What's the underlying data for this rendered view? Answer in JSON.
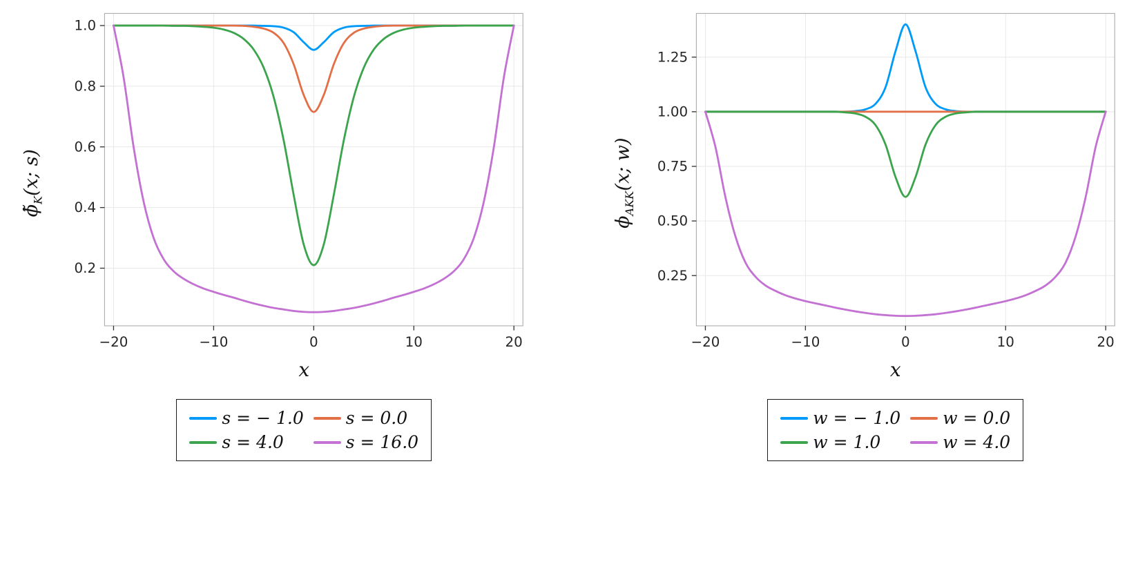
{
  "palette": {
    "blue": "#009AFA",
    "orange": "#E36F47",
    "green": "#3DA44E",
    "purple": "#C371D2",
    "grid": "#e7e7e7",
    "frame": "#aeaeae",
    "tick": "#333333",
    "tick_label": "#262626"
  },
  "chart_data": [
    {
      "type": "line",
      "title": "",
      "xlabel": "x",
      "ylabel": "ϕ̃_K(x; s)",
      "ylabel_parts": {
        "base": "ϕ̃",
        "sub": "K",
        "rest": "(x; s)"
      },
      "xlim": [
        -20.9,
        20.9
      ],
      "ylim": [
        0.01,
        1.04
      ],
      "grid": true,
      "legend_position": "below",
      "xticks": {
        "values": [
          -20,
          -10,
          0,
          10,
          20
        ],
        "labels": [
          "−20",
          "−10",
          "0",
          "10",
          "20"
        ]
      },
      "yticks": {
        "values": [
          0.2,
          0.4,
          0.6,
          0.8,
          1.0
        ],
        "labels": [
          "0.2",
          "0.4",
          "0.6",
          "0.8",
          "1.0"
        ]
      },
      "x": [
        -20,
        -19,
        -18,
        -17,
        -16,
        -15,
        -14,
        -13,
        -12,
        -11,
        -10,
        -9,
        -8,
        -7,
        -6,
        -5,
        -4,
        -3,
        -2,
        -1,
        0,
        1,
        2,
        3,
        4,
        5,
        6,
        7,
        8,
        9,
        10,
        11,
        12,
        13,
        14,
        15,
        16,
        17,
        18,
        19,
        20
      ],
      "series": [
        {
          "name": "s = − 1.0",
          "color": "#009AFA",
          "y": [
            1,
            1,
            1,
            1,
            1,
            1,
            1,
            1,
            1,
            1,
            1,
            1,
            1,
            1,
            1,
            0.999,
            0.998,
            0.993,
            0.978,
            0.945,
            0.92,
            0.945,
            0.978,
            0.993,
            0.998,
            0.999,
            1,
            1,
            1,
            1,
            1,
            1,
            1,
            1,
            1,
            1,
            1,
            1,
            1,
            1,
            1
          ]
        },
        {
          "name": "s = 0.0",
          "color": "#E36F47",
          "y": [
            1,
            1,
            1,
            1,
            1,
            1,
            1,
            1,
            1,
            1,
            1,
            1,
            1,
            0.999,
            0.996,
            0.99,
            0.976,
            0.942,
            0.872,
            0.771,
            0.715,
            0.771,
            0.872,
            0.942,
            0.976,
            0.99,
            0.996,
            0.999,
            1,
            1,
            1,
            1,
            1,
            1,
            1,
            1,
            1,
            1,
            1,
            1,
            1
          ]
        },
        {
          "name": "s = 4.0",
          "color": "#3DA44E",
          "y": [
            1,
            1,
            1,
            1,
            1,
            1,
            0.999,
            0.999,
            0.998,
            0.996,
            0.993,
            0.987,
            0.976,
            0.956,
            0.921,
            0.861,
            0.764,
            0.621,
            0.441,
            0.278,
            0.21,
            0.278,
            0.441,
            0.621,
            0.764,
            0.861,
            0.921,
            0.956,
            0.976,
            0.987,
            0.993,
            0.996,
            0.998,
            0.999,
            0.999,
            1,
            1,
            1,
            1,
            1,
            1
          ]
        },
        {
          "name": "s = 16.0",
          "color": "#C371D2",
          "y": [
            1,
            0.83,
            0.6,
            0.42,
            0.3,
            0.23,
            0.19,
            0.165,
            0.147,
            0.133,
            0.122,
            0.112,
            0.103,
            0.093,
            0.084,
            0.076,
            0.069,
            0.064,
            0.059,
            0.056,
            0.055,
            0.056,
            0.059,
            0.064,
            0.069,
            0.076,
            0.084,
            0.093,
            0.103,
            0.112,
            0.122,
            0.133,
            0.147,
            0.165,
            0.19,
            0.23,
            0.3,
            0.42,
            0.6,
            0.83,
            1
          ]
        }
      ]
    },
    {
      "type": "line",
      "title": "",
      "xlabel": "x",
      "ylabel": "ϕ_AKK(x; w)",
      "ylabel_parts": {
        "base": "ϕ",
        "sub": "AKK",
        "rest": "(x; w)"
      },
      "xlim": [
        -20.9,
        20.9
      ],
      "ylim": [
        0.02,
        1.45
      ],
      "grid": true,
      "legend_position": "below",
      "xticks": {
        "values": [
          -20,
          -10,
          0,
          10,
          20
        ],
        "labels": [
          "−20",
          "−10",
          "0",
          "10",
          "20"
        ]
      },
      "yticks": {
        "values": [
          0.25,
          0.5,
          0.75,
          1.0,
          1.25
        ],
        "labels": [
          "0.25",
          "0.50",
          "0.75",
          "1.00",
          "1.25"
        ]
      },
      "x": [
        -20,
        -19,
        -18,
        -17,
        -16,
        -15,
        -14,
        -13,
        -12,
        -11,
        -10,
        -9,
        -8,
        -7,
        -6,
        -5,
        -4,
        -3,
        -2,
        -1,
        0,
        1,
        2,
        3,
        4,
        5,
        6,
        7,
        8,
        9,
        10,
        11,
        12,
        13,
        14,
        15,
        16,
        17,
        18,
        19,
        20
      ],
      "series": [
        {
          "name": "w = − 1.0",
          "color": "#009AFA",
          "y": [
            1,
            1,
            1,
            1,
            1,
            1,
            1,
            1,
            1,
            1,
            1,
            1,
            1,
            1,
            1,
            1.003,
            1.011,
            1.036,
            1.112,
            1.277,
            1.4,
            1.277,
            1.112,
            1.036,
            1.011,
            1.003,
            1,
            1,
            1,
            1,
            1,
            1,
            1,
            1,
            1,
            1,
            1,
            1,
            1,
            1,
            1
          ]
        },
        {
          "name": "w = 0.0",
          "color": "#E36F47",
          "y": [
            1,
            1,
            1,
            1,
            1,
            1,
            1,
            1,
            1,
            1,
            1,
            1,
            1,
            1,
            1,
            1,
            1,
            1,
            1,
            1,
            1,
            1,
            1,
            1,
            1,
            1,
            1,
            1,
            1,
            1,
            1,
            1,
            1,
            1,
            1,
            1,
            1,
            1,
            1,
            1,
            1
          ]
        },
        {
          "name": "w = 1.0",
          "color": "#3DA44E",
          "y": [
            1,
            1,
            1,
            1,
            1,
            1,
            1,
            1,
            1,
            1,
            1,
            1,
            1,
            1,
            0.997,
            0.992,
            0.977,
            0.939,
            0.85,
            0.701,
            0.61,
            0.701,
            0.85,
            0.939,
            0.977,
            0.992,
            0.997,
            1,
            1,
            1,
            1,
            1,
            1,
            1,
            1,
            1,
            1,
            1,
            1,
            1,
            1
          ]
        },
        {
          "name": "w = 4.0",
          "color": "#C371D2",
          "y": [
            1,
            0.84,
            0.61,
            0.43,
            0.31,
            0.245,
            0.205,
            0.18,
            0.16,
            0.145,
            0.133,
            0.123,
            0.113,
            0.103,
            0.094,
            0.086,
            0.079,
            0.073,
            0.069,
            0.066,
            0.065,
            0.066,
            0.069,
            0.073,
            0.079,
            0.086,
            0.094,
            0.103,
            0.113,
            0.123,
            0.133,
            0.145,
            0.16,
            0.18,
            0.205,
            0.245,
            0.31,
            0.43,
            0.61,
            0.84,
            1
          ]
        }
      ]
    }
  ]
}
